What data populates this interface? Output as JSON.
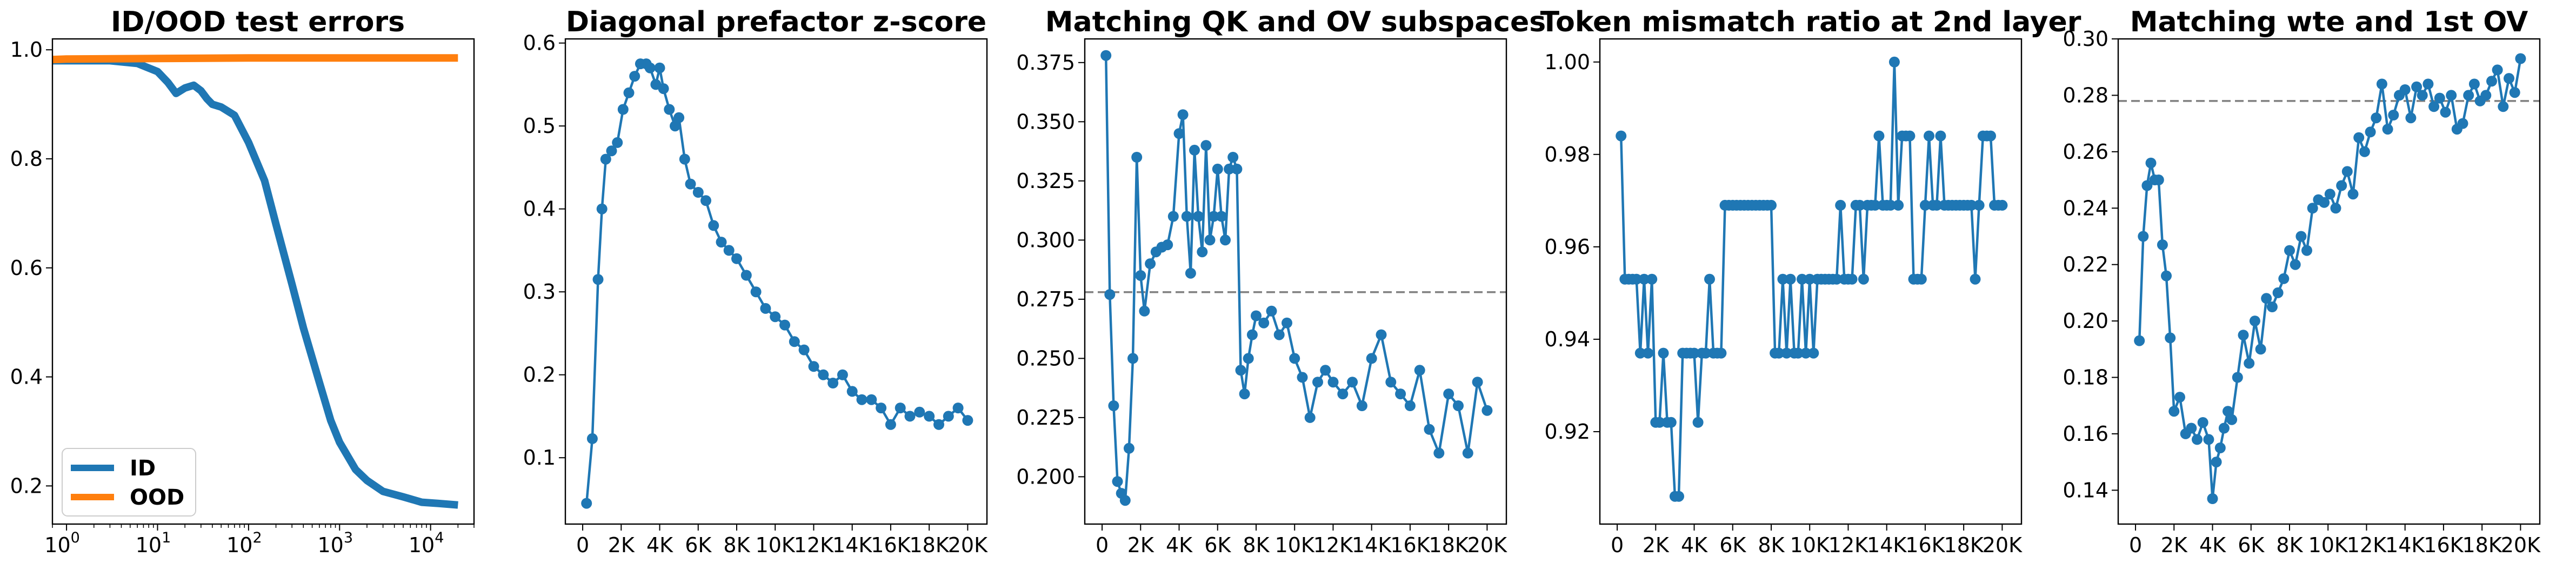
{
  "colors": {
    "blue": "#1f77b4",
    "orange": "#ff7f0e",
    "ref_line": "#808080"
  },
  "chart_data": [
    {
      "type": "line",
      "title": "ID/OOD test errors",
      "xscale": "log",
      "xlim": [
        0.7,
        30000
      ],
      "ylim": [
        0.13,
        1.02
      ],
      "x_ticks": [
        1,
        10,
        100,
        1000,
        10000
      ],
      "x_tick_labels": [
        "10",
        "10",
        "10",
        "10",
        "10"
      ],
      "x_tick_exponents": [
        "0",
        "1",
        "2",
        "3",
        "4"
      ],
      "y_ticks": [
        0.2,
        0.4,
        0.6,
        0.8,
        1.0
      ],
      "y_tick_labels": [
        "0.2",
        "0.4",
        "0.6",
        "0.8",
        "1.0"
      ],
      "legend": "lower-left",
      "series": [
        {
          "name": "ID",
          "color": "#1f77b4",
          "x": [
            0.7,
            3,
            6,
            10,
            13,
            16,
            20,
            25,
            30,
            35,
            40,
            50,
            70,
            100,
            150,
            200,
            300,
            400,
            600,
            800,
            1000,
            1500,
            2000,
            3000,
            5000,
            8000,
            12000,
            20000
          ],
          "y": [
            0.98,
            0.98,
            0.975,
            0.96,
            0.94,
            0.92,
            0.93,
            0.935,
            0.925,
            0.91,
            0.9,
            0.895,
            0.88,
            0.83,
            0.76,
            0.68,
            0.57,
            0.49,
            0.39,
            0.32,
            0.28,
            0.23,
            0.21,
            0.19,
            0.18,
            0.17,
            0.168,
            0.165
          ]
        },
        {
          "name": "OOD",
          "color": "#ff7f0e",
          "x": [
            0.7,
            1,
            10,
            100,
            1000,
            10000,
            20000
          ],
          "y": [
            0.982,
            0.983,
            0.984,
            0.985,
            0.985,
            0.985,
            0.985
          ]
        }
      ]
    },
    {
      "type": "line",
      "title": "Diagonal prefactor z-score",
      "xlim": [
        -900,
        21000
      ],
      "ylim": [
        0.02,
        0.605
      ],
      "x_ticks": [
        0,
        2000,
        4000,
        6000,
        8000,
        10000,
        12000,
        14000,
        16000,
        18000,
        20000
      ],
      "x_tick_labels": [
        "0",
        "2K",
        "4K",
        "6K",
        "8K",
        "10K",
        "12K",
        "14K",
        "16K",
        "18K",
        "20K"
      ],
      "y_ticks": [
        0.1,
        0.2,
        0.3,
        0.4,
        0.5,
        0.6
      ],
      "y_tick_labels": [
        "0.1",
        "0.2",
        "0.3",
        "0.4",
        "0.5",
        "0.6"
      ],
      "series": [
        {
          "color": "#1f77b4",
          "x": [
            200,
            500,
            800,
            1000,
            1200,
            1500,
            1800,
            2100,
            2400,
            2700,
            3000,
            3300,
            3500,
            3800,
            4000,
            4200,
            4500,
            4800,
            5000,
            5300,
            5600,
            6000,
            6400,
            6800,
            7200,
            7600,
            8000,
            8500,
            9000,
            9500,
            10000,
            10500,
            11000,
            11500,
            12000,
            12500,
            13000,
            13500,
            14000,
            14500,
            15000,
            15500,
            16000,
            16500,
            17000,
            17500,
            18000,
            18500,
            19000,
            19500,
            20000
          ],
          "y": [
            0.045,
            0.123,
            0.315,
            0.4,
            0.46,
            0.47,
            0.48,
            0.52,
            0.54,
            0.56,
            0.575,
            0.575,
            0.57,
            0.55,
            0.57,
            0.545,
            0.52,
            0.5,
            0.51,
            0.46,
            0.43,
            0.42,
            0.41,
            0.38,
            0.36,
            0.35,
            0.34,
            0.32,
            0.3,
            0.28,
            0.27,
            0.26,
            0.24,
            0.23,
            0.21,
            0.2,
            0.19,
            0.2,
            0.18,
            0.17,
            0.17,
            0.16,
            0.14,
            0.16,
            0.15,
            0.155,
            0.15,
            0.14,
            0.15,
            0.16,
            0.145
          ]
        }
      ]
    },
    {
      "type": "line",
      "title": "Matching QK and OV subspaces",
      "xlim": [
        -900,
        21000
      ],
      "ylim": [
        0.18,
        0.385
      ],
      "x_ticks": [
        0,
        2000,
        4000,
        6000,
        8000,
        10000,
        12000,
        14000,
        16000,
        18000,
        20000
      ],
      "x_tick_labels": [
        "0",
        "2K",
        "4K",
        "6K",
        "8K",
        "10K",
        "12K",
        "14K",
        "16K",
        "18K",
        "20K"
      ],
      "y_ticks": [
        0.2,
        0.225,
        0.25,
        0.275,
        0.3,
        0.325,
        0.35,
        0.375
      ],
      "y_tick_labels": [
        "0.200",
        "0.225",
        "0.250",
        "0.275",
        "0.300",
        "0.325",
        "0.350",
        "0.375"
      ],
      "hline": 0.278,
      "series": [
        {
          "color": "#1f77b4",
          "x": [
            200,
            400,
            600,
            800,
            1000,
            1200,
            1400,
            1600,
            1800,
            2000,
            2200,
            2500,
            2800,
            3100,
            3400,
            3700,
            4000,
            4200,
            4400,
            4600,
            4800,
            5000,
            5200,
            5400,
            5600,
            5800,
            6000,
            6200,
            6400,
            6600,
            6800,
            7000,
            7200,
            7400,
            7600,
            7800,
            8000,
            8400,
            8800,
            9200,
            9600,
            10000,
            10400,
            10800,
            11200,
            11600,
            12000,
            12500,
            13000,
            13500,
            14000,
            14500,
            15000,
            15500,
            16000,
            16500,
            17000,
            17500,
            18000,
            18500,
            19000,
            19500,
            20000
          ],
          "y": [
            0.378,
            0.277,
            0.23,
            0.198,
            0.193,
            0.19,
            0.212,
            0.25,
            0.335,
            0.285,
            0.27,
            0.29,
            0.295,
            0.297,
            0.298,
            0.31,
            0.345,
            0.353,
            0.31,
            0.286,
            0.338,
            0.31,
            0.295,
            0.34,
            0.3,
            0.31,
            0.33,
            0.31,
            0.3,
            0.33,
            0.335,
            0.33,
            0.245,
            0.235,
            0.25,
            0.26,
            0.268,
            0.265,
            0.27,
            0.26,
            0.265,
            0.25,
            0.242,
            0.225,
            0.24,
            0.245,
            0.24,
            0.235,
            0.24,
            0.23,
            0.25,
            0.26,
            0.24,
            0.235,
            0.23,
            0.245,
            0.22,
            0.21,
            0.235,
            0.23,
            0.21,
            0.24,
            0.228
          ]
        }
      ]
    },
    {
      "type": "line",
      "title": "Token mismatch ratio at 2nd layer",
      "xlim": [
        -900,
        21000
      ],
      "ylim": [
        0.9,
        1.005
      ],
      "x_ticks": [
        0,
        2000,
        4000,
        6000,
        8000,
        10000,
        12000,
        14000,
        16000,
        18000,
        20000
      ],
      "x_tick_labels": [
        "0",
        "2K",
        "4K",
        "6K",
        "8K",
        "10K",
        "12K",
        "14K",
        "16K",
        "18K",
        "20K"
      ],
      "y_ticks": [
        0.92,
        0.94,
        0.96,
        0.98,
        1.0
      ],
      "y_tick_labels": [
        "0.92",
        "0.94",
        "0.96",
        "0.98",
        "1.00"
      ],
      "series": [
        {
          "color": "#1f77b4",
          "x": [
            200,
            400,
            600,
            800,
            1000,
            1200,
            1400,
            1600,
            1800,
            2000,
            2200,
            2400,
            2600,
            2800,
            3000,
            3200,
            3400,
            3600,
            3800,
            4000,
            4200,
            4400,
            4600,
            4800,
            5000,
            5200,
            5400,
            5600,
            5800,
            6000,
            6200,
            6400,
            6600,
            6800,
            7000,
            7200,
            7400,
            7600,
            7800,
            8000,
            8200,
            8400,
            8600,
            8800,
            9000,
            9200,
            9400,
            9600,
            9800,
            10000,
            10200,
            10400,
            10600,
            10800,
            11000,
            11200,
            11400,
            11600,
            11800,
            12000,
            12200,
            12400,
            12600,
            12800,
            13000,
            13200,
            13400,
            13600,
            13800,
            14000,
            14200,
            14400,
            14600,
            14800,
            15000,
            15200,
            15400,
            15600,
            15800,
            16000,
            16200,
            16400,
            16600,
            16800,
            17000,
            17200,
            17400,
            17600,
            17800,
            18000,
            18200,
            18400,
            18600,
            18800,
            19000,
            19200,
            19400,
            19600,
            19800,
            20000
          ],
          "y": [
            0.984,
            0.953,
            0.953,
            0.953,
            0.953,
            0.937,
            0.953,
            0.937,
            0.953,
            0.922,
            0.922,
            0.937,
            0.922,
            0.922,
            0.906,
            0.906,
            0.937,
            0.937,
            0.937,
            0.937,
            0.922,
            0.937,
            0.937,
            0.953,
            0.937,
            0.937,
            0.937,
            0.969,
            0.969,
            0.969,
            0.969,
            0.969,
            0.969,
            0.969,
            0.969,
            0.969,
            0.969,
            0.969,
            0.969,
            0.969,
            0.937,
            0.937,
            0.953,
            0.937,
            0.953,
            0.937,
            0.937,
            0.953,
            0.937,
            0.953,
            0.937,
            0.953,
            0.953,
            0.953,
            0.953,
            0.953,
            0.953,
            0.969,
            0.953,
            0.953,
            0.953,
            0.969,
            0.969,
            0.953,
            0.969,
            0.969,
            0.969,
            0.984,
            0.969,
            0.969,
            0.969,
            1.0,
            0.969,
            0.984,
            0.984,
            0.984,
            0.953,
            0.953,
            0.953,
            0.969,
            0.984,
            0.969,
            0.969,
            0.984,
            0.969,
            0.969,
            0.969,
            0.969,
            0.969,
            0.969,
            0.969,
            0.969,
            0.953,
            0.969,
            0.984,
            0.984,
            0.984,
            0.969,
            0.969,
            0.969
          ]
        }
      ]
    },
    {
      "type": "line",
      "title": "Matching wte and 1st OV",
      "xlim": [
        -900,
        21000
      ],
      "ylim": [
        0.128,
        0.3
      ],
      "x_ticks": [
        0,
        2000,
        4000,
        6000,
        8000,
        10000,
        12000,
        14000,
        16000,
        18000,
        20000
      ],
      "x_tick_labels": [
        "0",
        "2K",
        "4K",
        "6K",
        "8K",
        "10K",
        "12K",
        "14K",
        "16K",
        "18K",
        "20K"
      ],
      "y_ticks": [
        0.14,
        0.16,
        0.18,
        0.2,
        0.22,
        0.24,
        0.26,
        0.28,
        0.3
      ],
      "y_tick_labels": [
        "0.14",
        "0.16",
        "0.18",
        "0.20",
        "0.22",
        "0.24",
        "0.26",
        "0.28",
        "0.30"
      ],
      "hline": 0.278,
      "series": [
        {
          "color": "#1f77b4",
          "x": [
            200,
            400,
            600,
            800,
            1000,
            1200,
            1400,
            1600,
            1800,
            2000,
            2300,
            2600,
            2900,
            3200,
            3500,
            3800,
            4000,
            4200,
            4400,
            4600,
            4800,
            5000,
            5300,
            5600,
            5900,
            6200,
            6500,
            6800,
            7100,
            7400,
            7700,
            8000,
            8300,
            8600,
            8900,
            9200,
            9500,
            9800,
            10100,
            10400,
            10700,
            11000,
            11300,
            11600,
            11900,
            12200,
            12500,
            12800,
            13100,
            13400,
            13700,
            14000,
            14300,
            14600,
            14900,
            15200,
            15500,
            15800,
            16100,
            16400,
            16700,
            17000,
            17300,
            17600,
            17900,
            18200,
            18500,
            18800,
            19100,
            19400,
            19700,
            20000
          ],
          "y": [
            0.193,
            0.23,
            0.248,
            0.256,
            0.25,
            0.25,
            0.227,
            0.216,
            0.194,
            0.168,
            0.173,
            0.16,
            0.162,
            0.158,
            0.164,
            0.158,
            0.137,
            0.15,
            0.155,
            0.162,
            0.168,
            0.165,
            0.18,
            0.195,
            0.185,
            0.2,
            0.19,
            0.208,
            0.205,
            0.21,
            0.215,
            0.225,
            0.22,
            0.23,
            0.225,
            0.24,
            0.243,
            0.242,
            0.245,
            0.24,
            0.248,
            0.253,
            0.245,
            0.265,
            0.26,
            0.267,
            0.272,
            0.284,
            0.268,
            0.273,
            0.28,
            0.282,
            0.272,
            0.283,
            0.28,
            0.284,
            0.276,
            0.279,
            0.274,
            0.28,
            0.268,
            0.27,
            0.28,
            0.284,
            0.278,
            0.28,
            0.285,
            0.289,
            0.276,
            0.286,
            0.281,
            0.293
          ]
        }
      ]
    }
  ]
}
